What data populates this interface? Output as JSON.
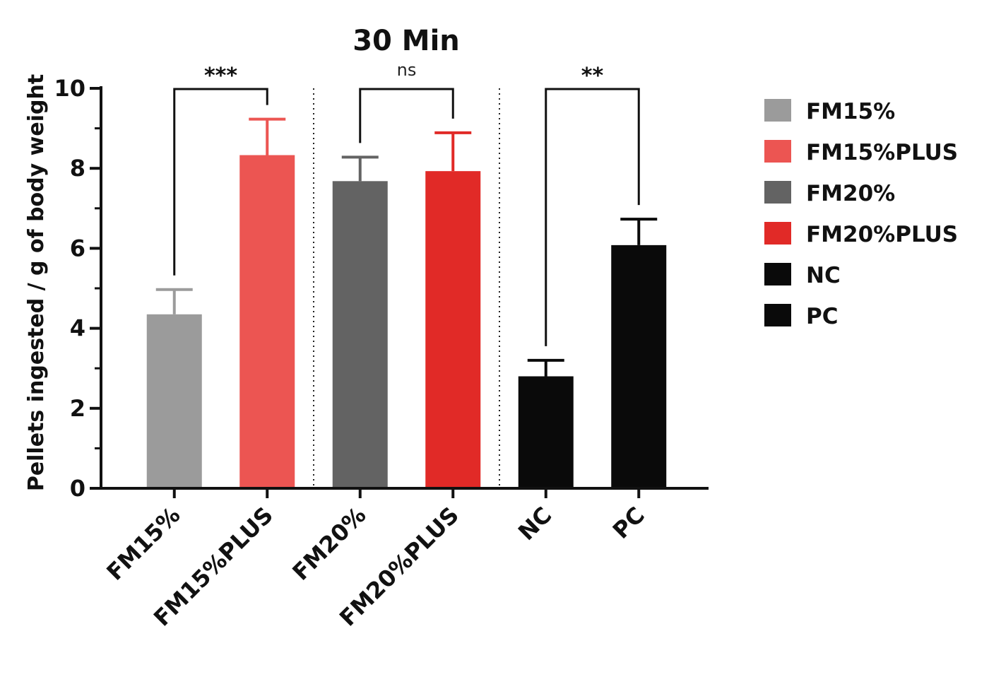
{
  "chart_data": {
    "type": "bar",
    "title": "30 Min",
    "xlabel": "",
    "ylabel": "Pellets ingested  / g of body weight",
    "ylim": [
      0,
      10
    ],
    "yticks": [
      0,
      2,
      4,
      6,
      8,
      10
    ],
    "grid": false,
    "legend_position": "right",
    "categories": [
      "FM15%",
      "FM15%PLUS",
      "FM20%",
      "FM20%PLUS",
      "NC",
      "PC"
    ],
    "values": [
      4.35,
      8.33,
      7.68,
      7.93,
      2.8,
      6.08
    ],
    "errors": [
      0.62,
      0.9,
      0.6,
      0.96,
      0.4,
      0.65
    ],
    "colors": [
      "#9b9b9b",
      "#ec5552",
      "#636363",
      "#e12a27",
      "#0a0a0a",
      "#0a0a0a"
    ],
    "legend": [
      {
        "label": "FM15%",
        "color": "#9b9b9b"
      },
      {
        "label": "FM15%PLUS",
        "color": "#ec5552"
      },
      {
        "label": "FM20%",
        "color": "#636363"
      },
      {
        "label": "FM20%PLUS",
        "color": "#e12a27"
      },
      {
        "label": "NC",
        "color": "#0a0a0a"
      },
      {
        "label": "PC",
        "color": "#0a0a0a"
      }
    ],
    "comparisons": [
      {
        "from": 0,
        "to": 1,
        "label": "***"
      },
      {
        "from": 2,
        "to": 3,
        "label": "ns"
      },
      {
        "from": 4,
        "to": 5,
        "label": "**"
      }
    ],
    "group_dividers_after": [
      1,
      3
    ]
  }
}
